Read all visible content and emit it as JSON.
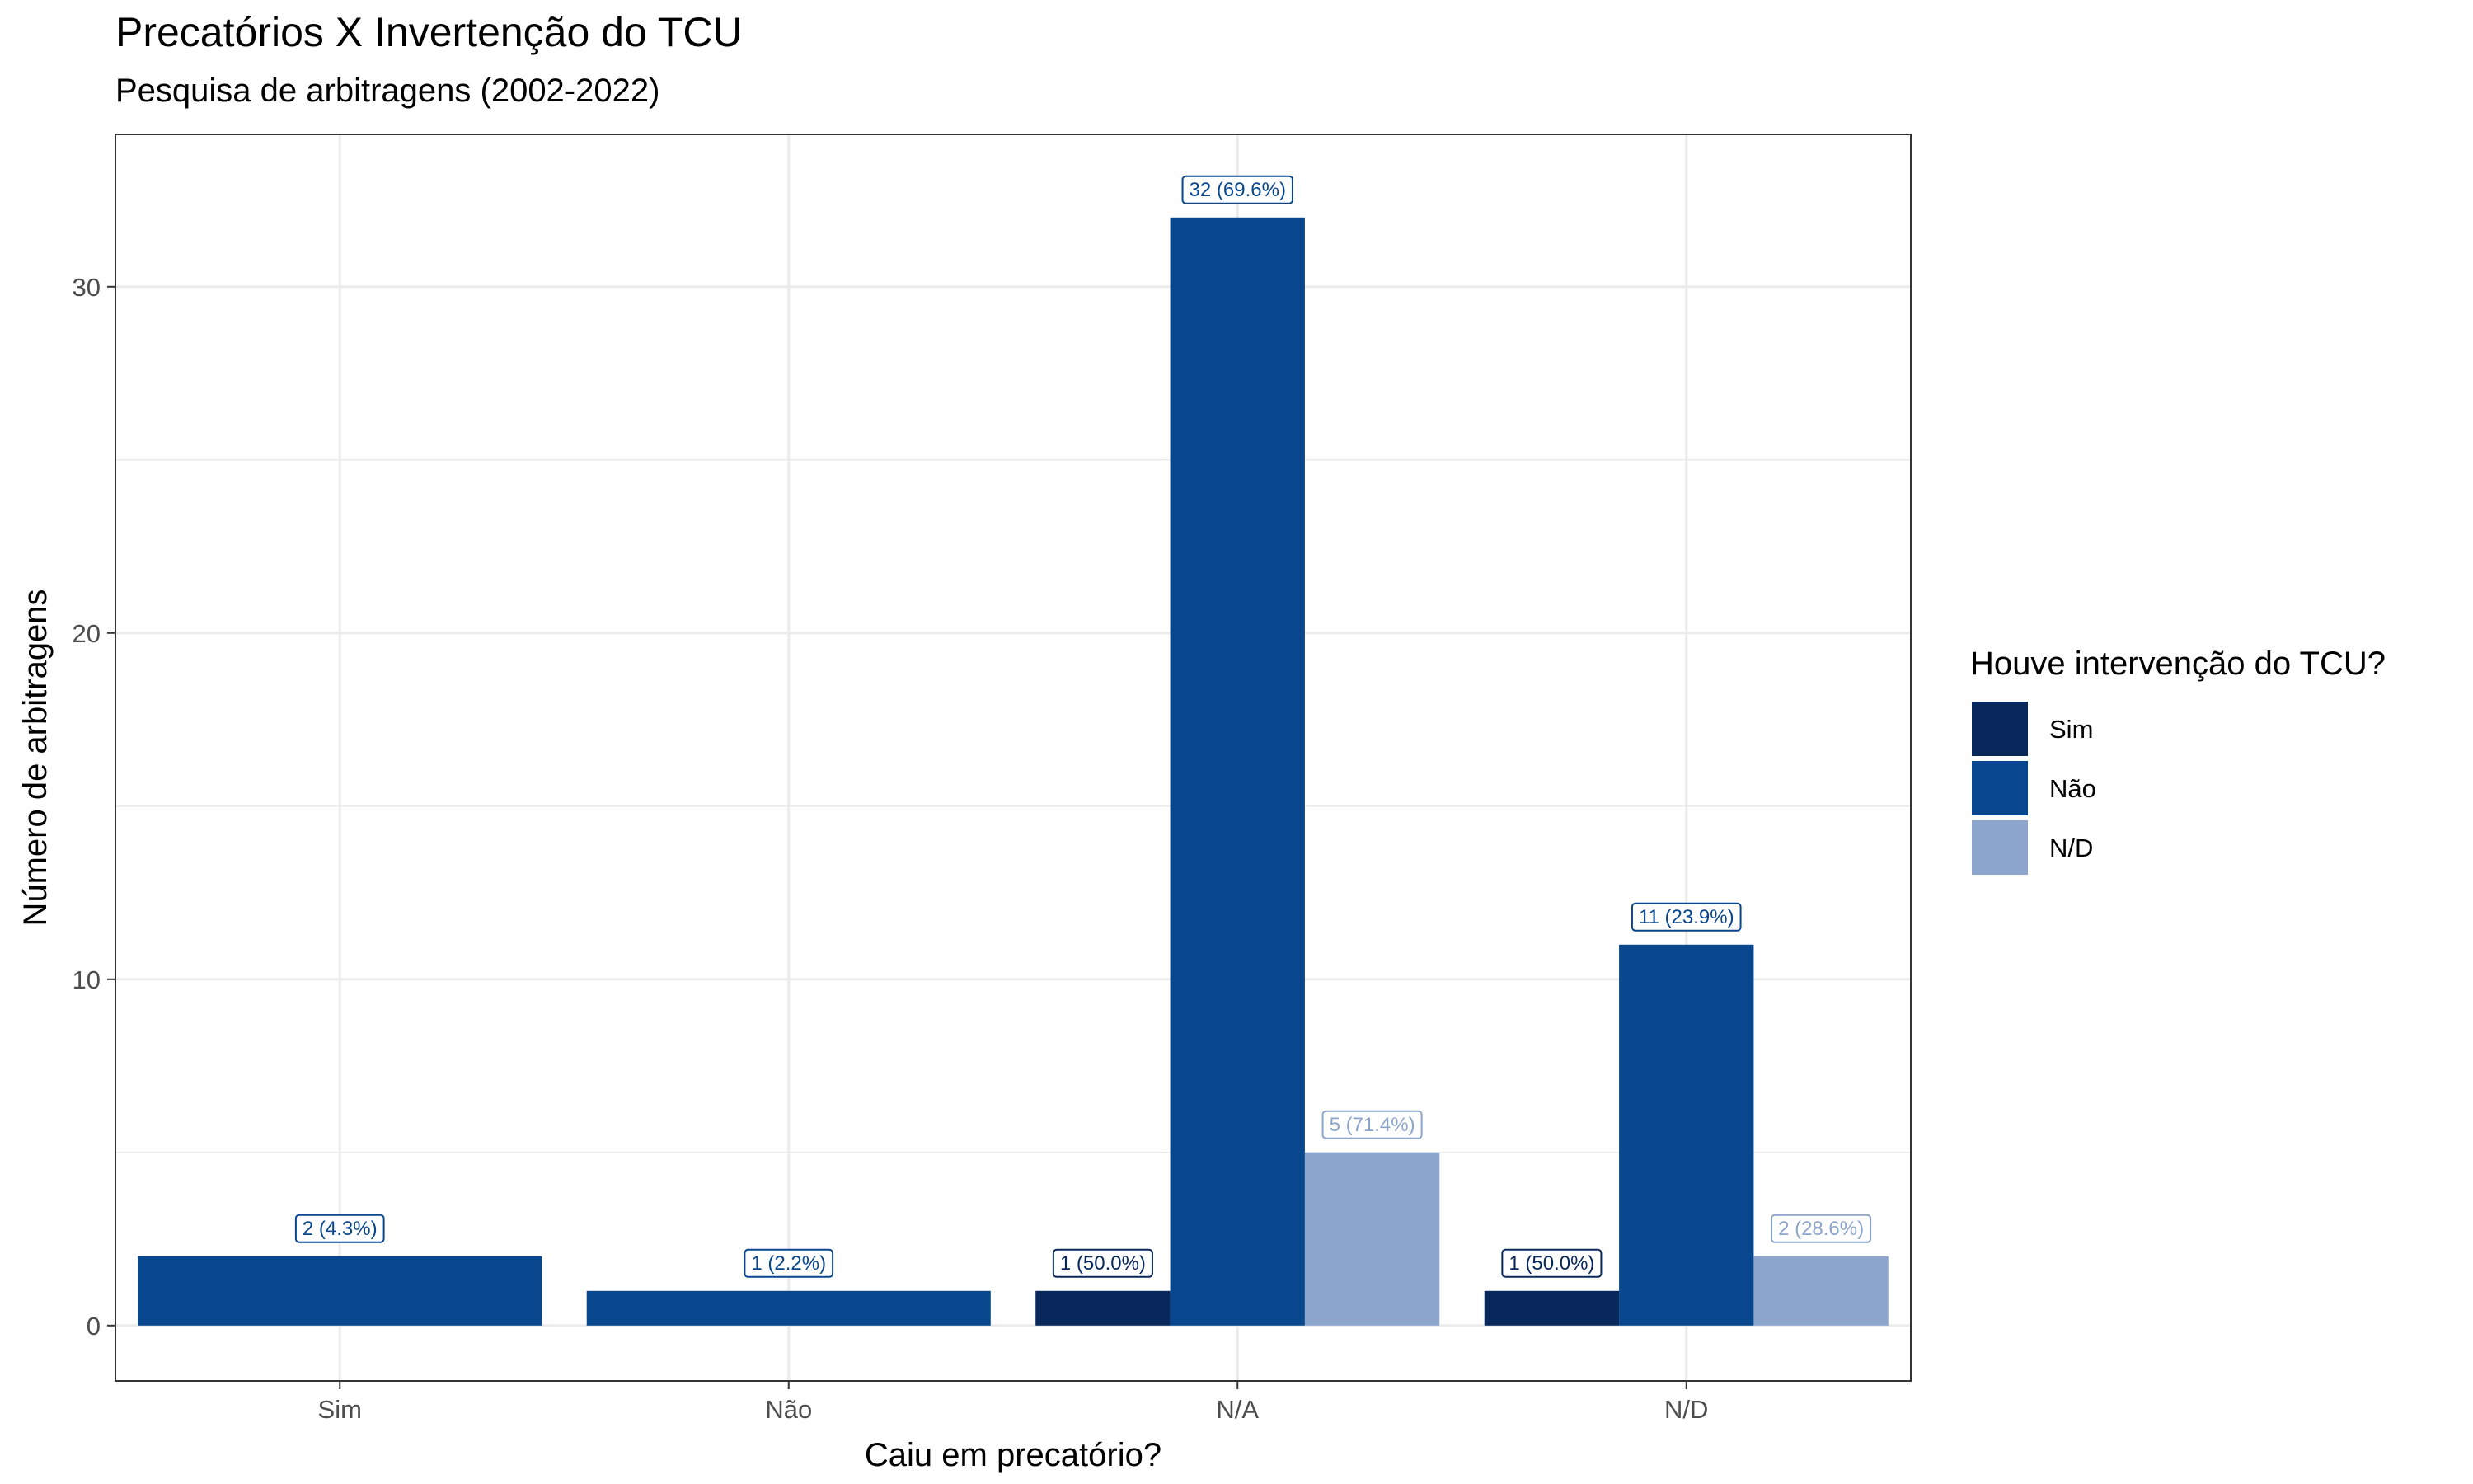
{
  "header": {
    "title": "Precatórios X Invertenção do TCU",
    "subtitle": "Pesquisa de arbitragens (2002-2022)"
  },
  "colors": {
    "Sim": "#08285c",
    "Não": "#08478d",
    "N/D": "#8ba5cc",
    "grid": "#ebebeb",
    "panel_border": "#333333"
  },
  "chart_data": {
    "type": "bar",
    "title": "Precatórios X Invertenção do TCU",
    "subtitle": "Pesquisa de arbitragens (2002-2022)",
    "xlabel": "Caiu em precatório?",
    "ylabel": "Número de arbitragens",
    "categories": [
      "Sim",
      "Não",
      "N/A",
      "N/D"
    ],
    "ylim": [
      -1.6,
      34.4
    ],
    "yticks": [
      0,
      10,
      20,
      30
    ],
    "ytick_labels": [
      "0",
      "10",
      "20",
      "30"
    ],
    "grid": true,
    "legend": {
      "title": "Houve intervenção do TCU?",
      "position": "right",
      "entries": [
        "Sim",
        "Não",
        "N/D"
      ]
    },
    "groups": [
      {
        "category": "Sim",
        "bars": [
          {
            "series": "Não",
            "value": 2,
            "label": "2 (4.3%)"
          }
        ]
      },
      {
        "category": "Não",
        "bars": [
          {
            "series": "Não",
            "value": 1,
            "label": "1 (2.2%)"
          }
        ]
      },
      {
        "category": "N/A",
        "bars": [
          {
            "series": "Sim",
            "value": 1,
            "label": "1 (50.0%)"
          },
          {
            "series": "Não",
            "value": 32,
            "label": "32 (69.6%)"
          },
          {
            "series": "N/D",
            "value": 5,
            "label": "5 (71.4%)"
          }
        ]
      },
      {
        "category": "N/D",
        "bars": [
          {
            "series": "Sim",
            "value": 1,
            "label": "1 (50.0%)"
          },
          {
            "series": "Não",
            "value": 11,
            "label": "11 (23.9%)"
          },
          {
            "series": "N/D",
            "value": 2,
            "label": "2 (28.6%)"
          }
        ]
      }
    ]
  }
}
